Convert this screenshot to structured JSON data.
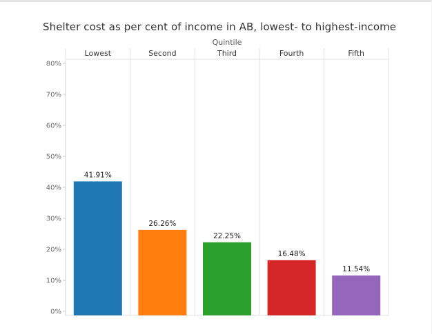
{
  "chart_data": {
    "type": "bar",
    "title": "Shelter cost as per cent of income in AB, lowest- to highest-income",
    "column_header_title": "Quintile",
    "categories": [
      "Lowest",
      "Second",
      "Third",
      "Fourth",
      "Fifth"
    ],
    "values": [
      41.91,
      26.26,
      22.25,
      16.48,
      11.54
    ],
    "value_labels": [
      "41.91%",
      "26.26%",
      "22.25%",
      "16.48%",
      "11.54%"
    ],
    "colors": [
      "#1f77b4",
      "#ff7f0e",
      "#2ca02c",
      "#d62728",
      "#9467bd"
    ],
    "ylim": [
      0,
      80
    ],
    "yticks": [
      0,
      10,
      20,
      30,
      40,
      50,
      60,
      70,
      80
    ],
    "ytick_labels": [
      "0%",
      "10%",
      "20%",
      "30%",
      "40%",
      "50%",
      "60%",
      "70%",
      "80%"
    ],
    "grid": false,
    "legend": "none"
  }
}
